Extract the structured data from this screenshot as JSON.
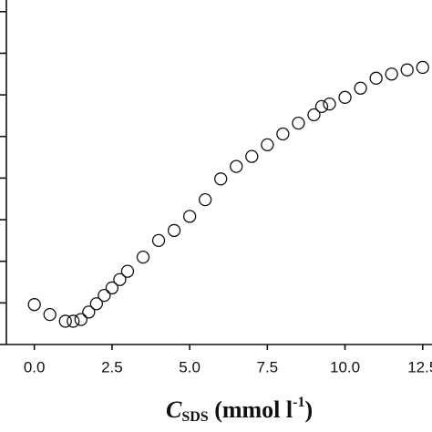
{
  "chart_data": {
    "type": "scatter",
    "x_label": {
      "main": "C",
      "sub": "SDS",
      "rest": " (mmol l",
      "sup": "-1",
      "end": ")"
    },
    "x": [
      0,
      0.5,
      1,
      1.25,
      1.5,
      1.75,
      2,
      2.25,
      2.5,
      2.75,
      3,
      3.5,
      4,
      4.5,
      5,
      5.5,
      6,
      6.5,
      7,
      7.5,
      8,
      8.5,
      9,
      9.25,
      9.5,
      10,
      10.5,
      11,
      11.5,
      12,
      12.5
    ],
    "values": [
      0.48,
      0.36,
      0.28,
      0.28,
      0.3,
      0.39,
      0.49,
      0.59,
      0.68,
      0.78,
      0.88,
      1.05,
      1.25,
      1.37,
      1.54,
      1.74,
      1.99,
      2.14,
      2.26,
      2.4,
      2.53,
      2.66,
      2.76,
      2.86,
      2.89,
      2.97,
      3.08,
      3.2,
      3.25,
      3.3,
      3.33
    ],
    "color": "#111111",
    "xlim": [
      -0.9,
      12.8
    ],
    "xticks": [
      {
        "value": 0,
        "label": "0.0"
      },
      {
        "value": 2.5,
        "label": "2.5"
      },
      {
        "value": 5,
        "label": "5.0"
      },
      {
        "value": 7.5,
        "label": "7.5"
      },
      {
        "value": 10,
        "label": "10.0"
      },
      {
        "value": 12.5,
        "label": "12.5"
      }
    ],
    "ylim": [
      0,
      4.14
    ],
    "yticks": [
      0,
      0.5,
      1,
      1.5,
      2,
      2.5,
      3,
      3.5,
      4
    ]
  }
}
